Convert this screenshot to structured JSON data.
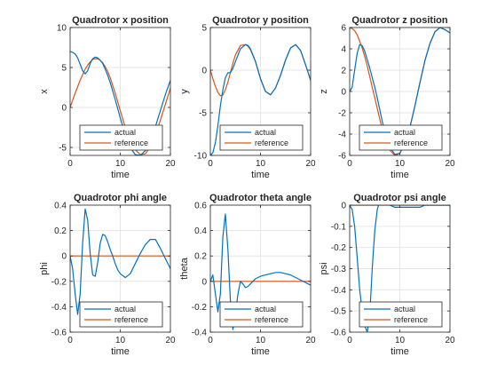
{
  "colors": {
    "actual": "#0072BD",
    "reference": "#D95319",
    "grid": "#e6e6e6",
    "axis": "#262626"
  },
  "chart_data": [
    {
      "type": "line",
      "title": "Quadrotor x position",
      "xlabel": "time",
      "ylabel": "x",
      "xlim": [
        0,
        20
      ],
      "ylim": [
        -6,
        10
      ],
      "xticks": [
        0,
        10,
        20
      ],
      "yticks": [
        -5,
        0,
        5,
        10
      ],
      "grid": true,
      "legend": "bottom-center",
      "series": [
        {
          "name": "actual",
          "x": [
            0,
            0.5,
            1,
            1.5,
            2,
            2.5,
            3,
            3.5,
            4,
            4.5,
            5,
            5.5,
            6,
            6.5,
            7,
            7.5,
            8,
            9,
            10,
            11,
            12,
            13,
            14,
            15,
            16,
            17,
            18,
            19,
            20
          ],
          "y": [
            7,
            6.9,
            6.7,
            6.2,
            5.4,
            4.6,
            4.2,
            4.6,
            5.5,
            6.1,
            6.3,
            6.2,
            5.9,
            5.5,
            4.8,
            4.0,
            3.1,
            1.0,
            -1.3,
            -3.4,
            -5.0,
            -5.9,
            -6.0,
            -5.4,
            -4.1,
            -2.4,
            -0.4,
            1.6,
            3.4
          ]
        },
        {
          "name": "reference",
          "x": [
            0,
            0.5,
            1,
            1.5,
            2,
            2.5,
            3,
            3.5,
            4,
            4.5,
            5,
            5.5,
            6,
            6.5,
            7,
            7.5,
            8,
            9,
            10,
            11,
            12,
            13,
            14,
            15,
            16,
            17,
            18,
            19,
            20
          ],
          "y": [
            0,
            0.9,
            1.8,
            2.6,
            3.4,
            4.1,
            4.8,
            5.3,
            5.7,
            6.0,
            6.1,
            6.1,
            5.9,
            5.6,
            5.1,
            4.5,
            3.7,
            1.8,
            -0.4,
            -2.5,
            -4.2,
            -5.3,
            -5.9,
            -5.8,
            -4.9,
            -3.5,
            -1.6,
            0.4,
            2.4
          ]
        }
      ]
    },
    {
      "type": "line",
      "title": "Quadrotor y position",
      "xlabel": "time",
      "ylabel": "y",
      "xlim": [
        0,
        20
      ],
      "ylim": [
        -10,
        5
      ],
      "xticks": [
        0,
        10,
        20
      ],
      "yticks": [
        -10,
        -5,
        0,
        5
      ],
      "grid": true,
      "legend": "bottom-center",
      "series": [
        {
          "name": "actual",
          "x": [
            0,
            0.5,
            1,
            1.5,
            2,
            2.5,
            3,
            3.5,
            4,
            4.5,
            5,
            6,
            7,
            7.5,
            8,
            9,
            10,
            11,
            12,
            13,
            14,
            15,
            16,
            17,
            18,
            19,
            20
          ],
          "y": [
            -10,
            -9.7,
            -8.5,
            -6.5,
            -4.2,
            -2.3,
            -0.9,
            -0.3,
            -0.3,
            0.2,
            1.0,
            2.5,
            3.0,
            2.9,
            2.5,
            1.0,
            -1.0,
            -2.5,
            -2.9,
            -2.1,
            -0.6,
            1.2,
            2.6,
            3.0,
            2.3,
            0.6,
            -1.2
          ]
        },
        {
          "name": "reference",
          "x": [
            0,
            0.5,
            1,
            1.5,
            2,
            2.5,
            3,
            3.5,
            4,
            4.5,
            5,
            6,
            7,
            7.5,
            8,
            9,
            10,
            11,
            12,
            13,
            14,
            15,
            16,
            17,
            18,
            19,
            20
          ],
          "y": [
            0,
            -1.0,
            -1.9,
            -2.6,
            -3.0,
            -2.9,
            -2.3,
            -1.4,
            -0.3,
            0.8,
            1.8,
            2.9,
            3.0,
            2.8,
            2.4,
            1.0,
            -1.0,
            -2.5,
            -2.9,
            -2.1,
            -0.6,
            1.2,
            2.6,
            3.0,
            2.3,
            0.6,
            -1.2
          ]
        }
      ]
    },
    {
      "type": "line",
      "title": "Quadrotor z position",
      "xlabel": "time",
      "ylabel": "z",
      "xlim": [
        0,
        20
      ],
      "ylim": [
        -6,
        6
      ],
      "xticks": [
        0,
        10,
        20
      ],
      "yticks": [
        -6,
        -4,
        -2,
        0,
        2,
        4,
        6
      ],
      "grid": true,
      "legend": "bottom-center",
      "series": [
        {
          "name": "actual",
          "x": [
            0,
            0.5,
            1,
            1.5,
            2,
            2.5,
            3,
            3.5,
            4,
            4.5,
            5,
            5.5,
            6,
            6.5,
            7,
            8,
            9,
            10,
            11,
            12,
            13,
            14,
            15,
            16,
            17,
            18,
            19,
            20
          ],
          "y": [
            0,
            0.4,
            2.0,
            3.6,
            4.4,
            4.3,
            3.8,
            3.0,
            2.2,
            1.3,
            0.4,
            -0.6,
            -1.7,
            -2.8,
            -3.7,
            -5.2,
            -5.9,
            -5.8,
            -4.9,
            -3.4,
            -1.4,
            0.8,
            2.9,
            4.5,
            5.6,
            6.0,
            5.8,
            5.5
          ]
        },
        {
          "name": "reference",
          "x": [
            0,
            0.5,
            1,
            1.5,
            2,
            2.5,
            3,
            3.5,
            4,
            4.5,
            5,
            5.5,
            6,
            6.5,
            7,
            8,
            9,
            10,
            11,
            12,
            13,
            14,
            15,
            16,
            17,
            18,
            19,
            20
          ],
          "y": [
            6,
            5.9,
            5.7,
            5.3,
            4.7,
            4.1,
            3.3,
            2.4,
            1.4,
            0.4,
            -0.6,
            -1.6,
            -2.6,
            -3.5,
            -4.3,
            -5.5,
            -6.0,
            -5.8,
            -4.9,
            -3.4,
            -1.4,
            0.8,
            2.9,
            4.5,
            5.6,
            6.0,
            5.8,
            5.5
          ]
        }
      ]
    },
    {
      "type": "line",
      "title": "Quadrotor phi angle",
      "xlabel": "time",
      "ylabel": "phi",
      "xlim": [
        0,
        20
      ],
      "ylim": [
        -0.6,
        0.4
      ],
      "xticks": [
        0,
        10,
        20
      ],
      "yticks": [
        -0.6,
        -0.4,
        -0.2,
        0,
        0.2,
        0.4
      ],
      "grid": true,
      "legend": "bottom-center",
      "series": [
        {
          "name": "actual",
          "x": [
            0,
            0.5,
            1,
            1.5,
            2,
            2.5,
            3,
            3.5,
            4,
            4.5,
            5,
            5.5,
            6,
            6.5,
            7,
            7.5,
            8,
            8.5,
            9,
            9.5,
            10,
            11,
            12,
            13,
            14,
            15,
            16,
            17,
            18,
            19,
            20
          ],
          "y": [
            0,
            -0.1,
            -0.3,
            -0.46,
            -0.3,
            0.1,
            0.37,
            0.28,
            0.02,
            -0.15,
            -0.16,
            -0.05,
            0.1,
            0.17,
            0.16,
            0.11,
            0.05,
            0.0,
            -0.06,
            -0.11,
            -0.14,
            -0.17,
            -0.14,
            -0.06,
            0.02,
            0.09,
            0.13,
            0.13,
            0.06,
            -0.02,
            -0.1
          ]
        },
        {
          "name": "reference",
          "x": [
            0,
            20
          ],
          "y": [
            0,
            0
          ]
        }
      ]
    },
    {
      "type": "line",
      "title": "Quadrotor theta angle",
      "xlabel": "time",
      "ylabel": "theta",
      "xlim": [
        0,
        20
      ],
      "ylim": [
        -0.4,
        0.6
      ],
      "xticks": [
        0,
        10,
        20
      ],
      "yticks": [
        -0.4,
        -0.2,
        0,
        0.2,
        0.4,
        0.6
      ],
      "grid": true,
      "legend": "bottom-center",
      "series": [
        {
          "name": "actual",
          "x": [
            0,
            0.5,
            1,
            1.5,
            2,
            2.5,
            3,
            3.5,
            4,
            4.5,
            5,
            5.5,
            6,
            6.5,
            7,
            7.5,
            8,
            9,
            10,
            11,
            12,
            13,
            14,
            15,
            16,
            17,
            18,
            19,
            20
          ],
          "y": [
            0,
            0.05,
            -0.1,
            -0.24,
            -0.1,
            0.35,
            0.53,
            0.25,
            -0.15,
            -0.38,
            -0.25,
            -0.1,
            0.0,
            -0.02,
            -0.05,
            -0.04,
            -0.02,
            0.02,
            0.04,
            0.05,
            0.06,
            0.07,
            0.07,
            0.06,
            0.05,
            0.03,
            0.01,
            -0.01,
            -0.03
          ]
        },
        {
          "name": "reference",
          "x": [
            0,
            20
          ],
          "y": [
            0,
            0
          ]
        }
      ]
    },
    {
      "type": "line",
      "title": "Quadrotor psi angle",
      "xlabel": "time",
      "ylabel": "psi",
      "xlim": [
        0,
        20
      ],
      "ylim": [
        -0.6,
        0
      ],
      "xticks": [
        0,
        10,
        20
      ],
      "yticks": [
        -0.6,
        -0.5,
        -0.4,
        -0.3,
        -0.2,
        -0.1,
        0
      ],
      "grid": true,
      "legend": "bottom-center",
      "series": [
        {
          "name": "actual",
          "x": [
            0,
            0.5,
            1,
            1.5,
            2,
            2.5,
            3,
            3.5,
            4,
            4.5,
            5,
            5.5,
            6,
            6.5,
            7,
            7.5,
            8,
            9,
            10,
            11,
            12,
            13,
            14,
            15,
            16,
            17,
            18,
            19,
            20
          ],
          "y": [
            0,
            -0.02,
            -0.1,
            -0.25,
            -0.4,
            -0.5,
            -0.57,
            -0.6,
            -0.52,
            -0.3,
            -0.12,
            -0.02,
            0.02,
            0.03,
            0.02,
            0.01,
            0.0,
            -0.01,
            -0.01,
            -0.01,
            -0.01,
            -0.01,
            -0.01,
            0.0,
            0.0,
            0.0,
            0.0,
            0.0,
            0.0
          ]
        },
        {
          "name": "reference",
          "x": [
            0,
            20
          ],
          "y": [
            0,
            0
          ]
        }
      ]
    }
  ]
}
